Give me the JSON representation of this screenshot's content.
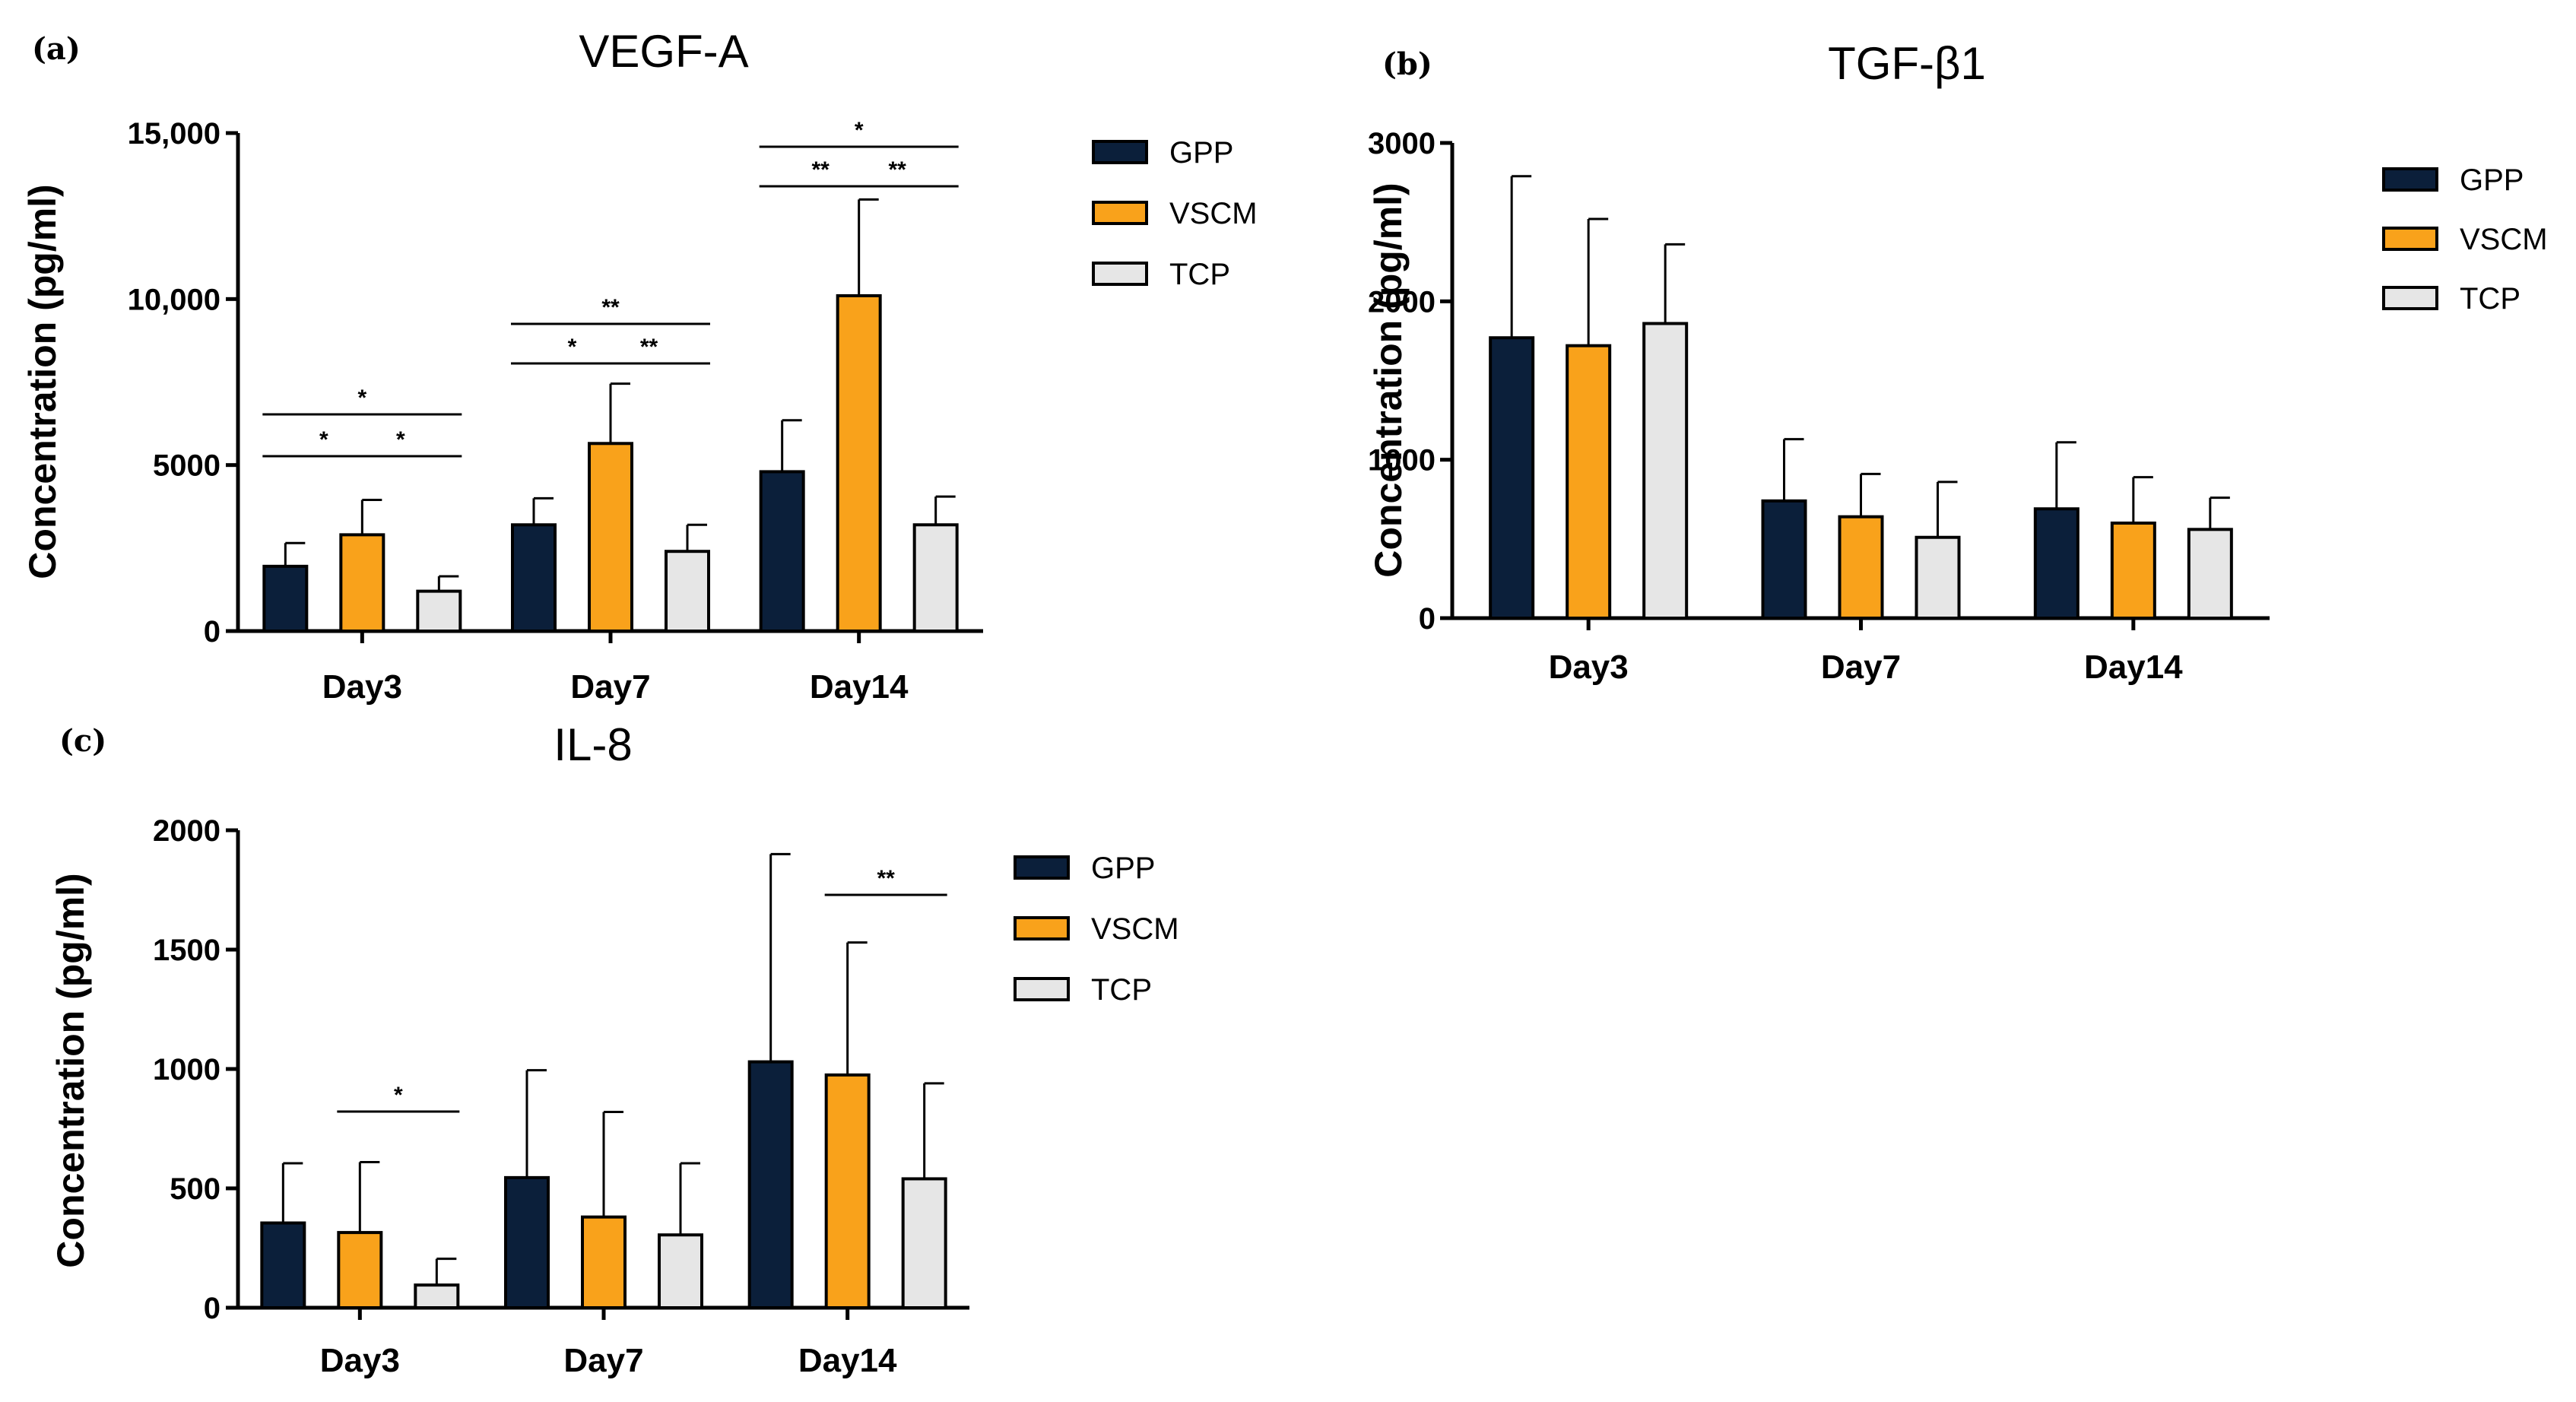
{
  "figure": {
    "panels": [
      "(a)",
      "(b)",
      "(c)"
    ]
  },
  "chart_data": [
    {
      "type": "bar",
      "panel": "(a)",
      "title": "VEGF-A",
      "xlabel": "",
      "ylabel": "Concentration (pg/ml)",
      "ylim": [
        0,
        15000
      ],
      "yticks": [
        0,
        5000,
        10000,
        15000
      ],
      "ytick_labels": [
        "0",
        "5000",
        "10,000",
        "15,000"
      ],
      "categories": [
        "Day3",
        "Day7",
        "Day14"
      ],
      "series": [
        {
          "name": "GPP",
          "color": "#0b1f3a",
          "values": [
            1950,
            3200,
            4800
          ],
          "errors": [
            700,
            800,
            1550
          ]
        },
        {
          "name": "VSCM",
          "color": "#f9a21b",
          "values": [
            2900,
            5650,
            10100
          ],
          "errors": [
            1050,
            1800,
            2900
          ]
        },
        {
          "name": "TCP",
          "color": "#e6e6e6",
          "values": [
            1200,
            2400,
            3200
          ],
          "errors": [
            450,
            800,
            850
          ]
        }
      ],
      "legend": {
        "position": "right",
        "labels": [
          "GPP",
          "VSCM",
          "TCP"
        ]
      },
      "significance": [
        {
          "category": "Day3",
          "from": "GPP",
          "to": "TCP",
          "label": "*",
          "level": 3
        },
        {
          "category": "Day3",
          "from": "GPP",
          "to": "VSCM",
          "label": "*",
          "level": 2
        },
        {
          "category": "Day3",
          "from": "VSCM",
          "to": "TCP",
          "label": "*",
          "level": 2
        },
        {
          "category": "Day7",
          "from": "GPP",
          "to": "TCP",
          "label": "**",
          "level": 3
        },
        {
          "category": "Day7",
          "from": "GPP",
          "to": "VSCM",
          "label": "*",
          "level": 2
        },
        {
          "category": "Day7",
          "from": "VSCM",
          "to": "TCP",
          "label": "**",
          "level": 2
        },
        {
          "category": "Day14",
          "from": "GPP",
          "to": "TCP",
          "label": "*",
          "level": 3
        },
        {
          "category": "Day14",
          "from": "GPP",
          "to": "VSCM",
          "label": "**",
          "level": 2
        },
        {
          "category": "Day14",
          "from": "VSCM",
          "to": "TCP",
          "label": "**",
          "level": 2
        }
      ]
    },
    {
      "type": "bar",
      "panel": "(b)",
      "title": "TGF-β1",
      "xlabel": "",
      "ylabel": "Concentration (pg/ml)",
      "ylim": [
        0,
        3000
      ],
      "yticks": [
        0,
        1000,
        2000,
        3000
      ],
      "ytick_labels": [
        "0",
        "1000",
        "2000",
        "3000"
      ],
      "categories": [
        "Day3",
        "Day7",
        "Day14"
      ],
      "series": [
        {
          "name": "GPP",
          "color": "#0b1f3a",
          "values": [
            1770,
            740,
            690
          ],
          "errors": [
            1020,
            390,
            420
          ]
        },
        {
          "name": "VSCM",
          "color": "#f9a21b",
          "values": [
            1720,
            640,
            600
          ],
          "errors": [
            800,
            270,
            290
          ]
        },
        {
          "name": "TCP",
          "color": "#e6e6e6",
          "values": [
            1860,
            510,
            560
          ],
          "errors": [
            500,
            350,
            200
          ]
        }
      ],
      "legend": {
        "position": "right",
        "labels": [
          "GPP",
          "VSCM",
          "TCP"
        ]
      },
      "significance": []
    },
    {
      "type": "bar",
      "panel": "(c)",
      "title": "IL-8",
      "xlabel": "",
      "ylabel": "Concentration (pg/ml)",
      "ylim": [
        0,
        2000
      ],
      "yticks": [
        0,
        500,
        1000,
        1500,
        2000
      ],
      "ytick_labels": [
        "0",
        "500",
        "1000",
        "1500",
        "2000"
      ],
      "categories": [
        "Day3",
        "Day7",
        "Day14"
      ],
      "series": [
        {
          "name": "GPP",
          "color": "#0b1f3a",
          "values": [
            355,
            545,
            1030
          ],
          "errors": [
            250,
            450,
            870
          ]
        },
        {
          "name": "VSCM",
          "color": "#f9a21b",
          "values": [
            315,
            380,
            975
          ],
          "errors": [
            295,
            440,
            555
          ]
        },
        {
          "name": "TCP",
          "color": "#e6e6e6",
          "values": [
            95,
            305,
            540
          ],
          "errors": [
            110,
            300,
            400
          ]
        }
      ],
      "legend": {
        "position": "right",
        "labels": [
          "GPP",
          "VSCM",
          "TCP"
        ]
      },
      "significance": [
        {
          "category": "Day3",
          "from": "VSCM",
          "to": "TCP",
          "label": "*",
          "level": 1
        },
        {
          "category": "Day14",
          "from": "VSCM",
          "to": "TCP",
          "label": "**",
          "level": 1
        }
      ]
    }
  ]
}
